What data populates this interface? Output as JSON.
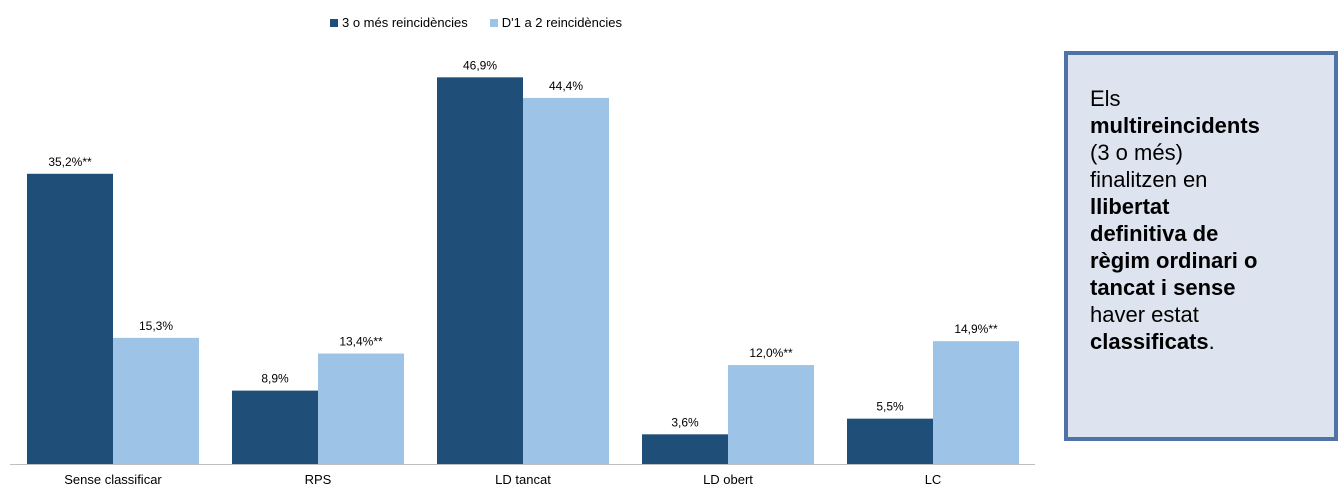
{
  "chart_data": {
    "type": "bar",
    "categories": [
      "Sense classificar",
      "RPS",
      "LD tancat",
      "LD obert",
      "LC"
    ],
    "series": [
      {
        "name": "3 o més reincidències",
        "color": "#1f4e79",
        "values": [
          35.2,
          8.9,
          46.9,
          3.6,
          5.5
        ],
        "labels": [
          "35,2%**",
          "8,9%",
          "46,9%",
          "3,6%",
          "5,5%"
        ]
      },
      {
        "name": "D'1 a 2 reincidències",
        "color": "#9dc3e6",
        "values": [
          15.3,
          13.4,
          44.4,
          12.0,
          14.9
        ],
        "labels": [
          "15,3%",
          "13,4%**",
          "44,4%",
          "12,0%**",
          "14,9%**"
        ]
      }
    ],
    "ylim": [
      0,
      50
    ],
    "grid": false,
    "legend_position": "top"
  },
  "callout": {
    "lines": [
      {
        "text": "Els",
        "bold": false
      },
      {
        "text": "multireincidents",
        "bold": true
      },
      {
        "text": "(3 o més)",
        "bold": false
      },
      {
        "text": "finalitzen en",
        "bold": false
      },
      {
        "text": "llibertat",
        "bold": true
      },
      {
        "text": "definitiva de",
        "bold": true
      },
      {
        "text": "règim ordinari o",
        "bold": true
      },
      {
        "text": "tancat i sense",
        "bold": true
      },
      {
        "text": "haver estat",
        "bold": false
      },
      {
        "text": "classificats",
        "bold": true,
        "suffix": "."
      }
    ],
    "border_color": "#4f73a6",
    "background_color": "#dde4ef"
  }
}
